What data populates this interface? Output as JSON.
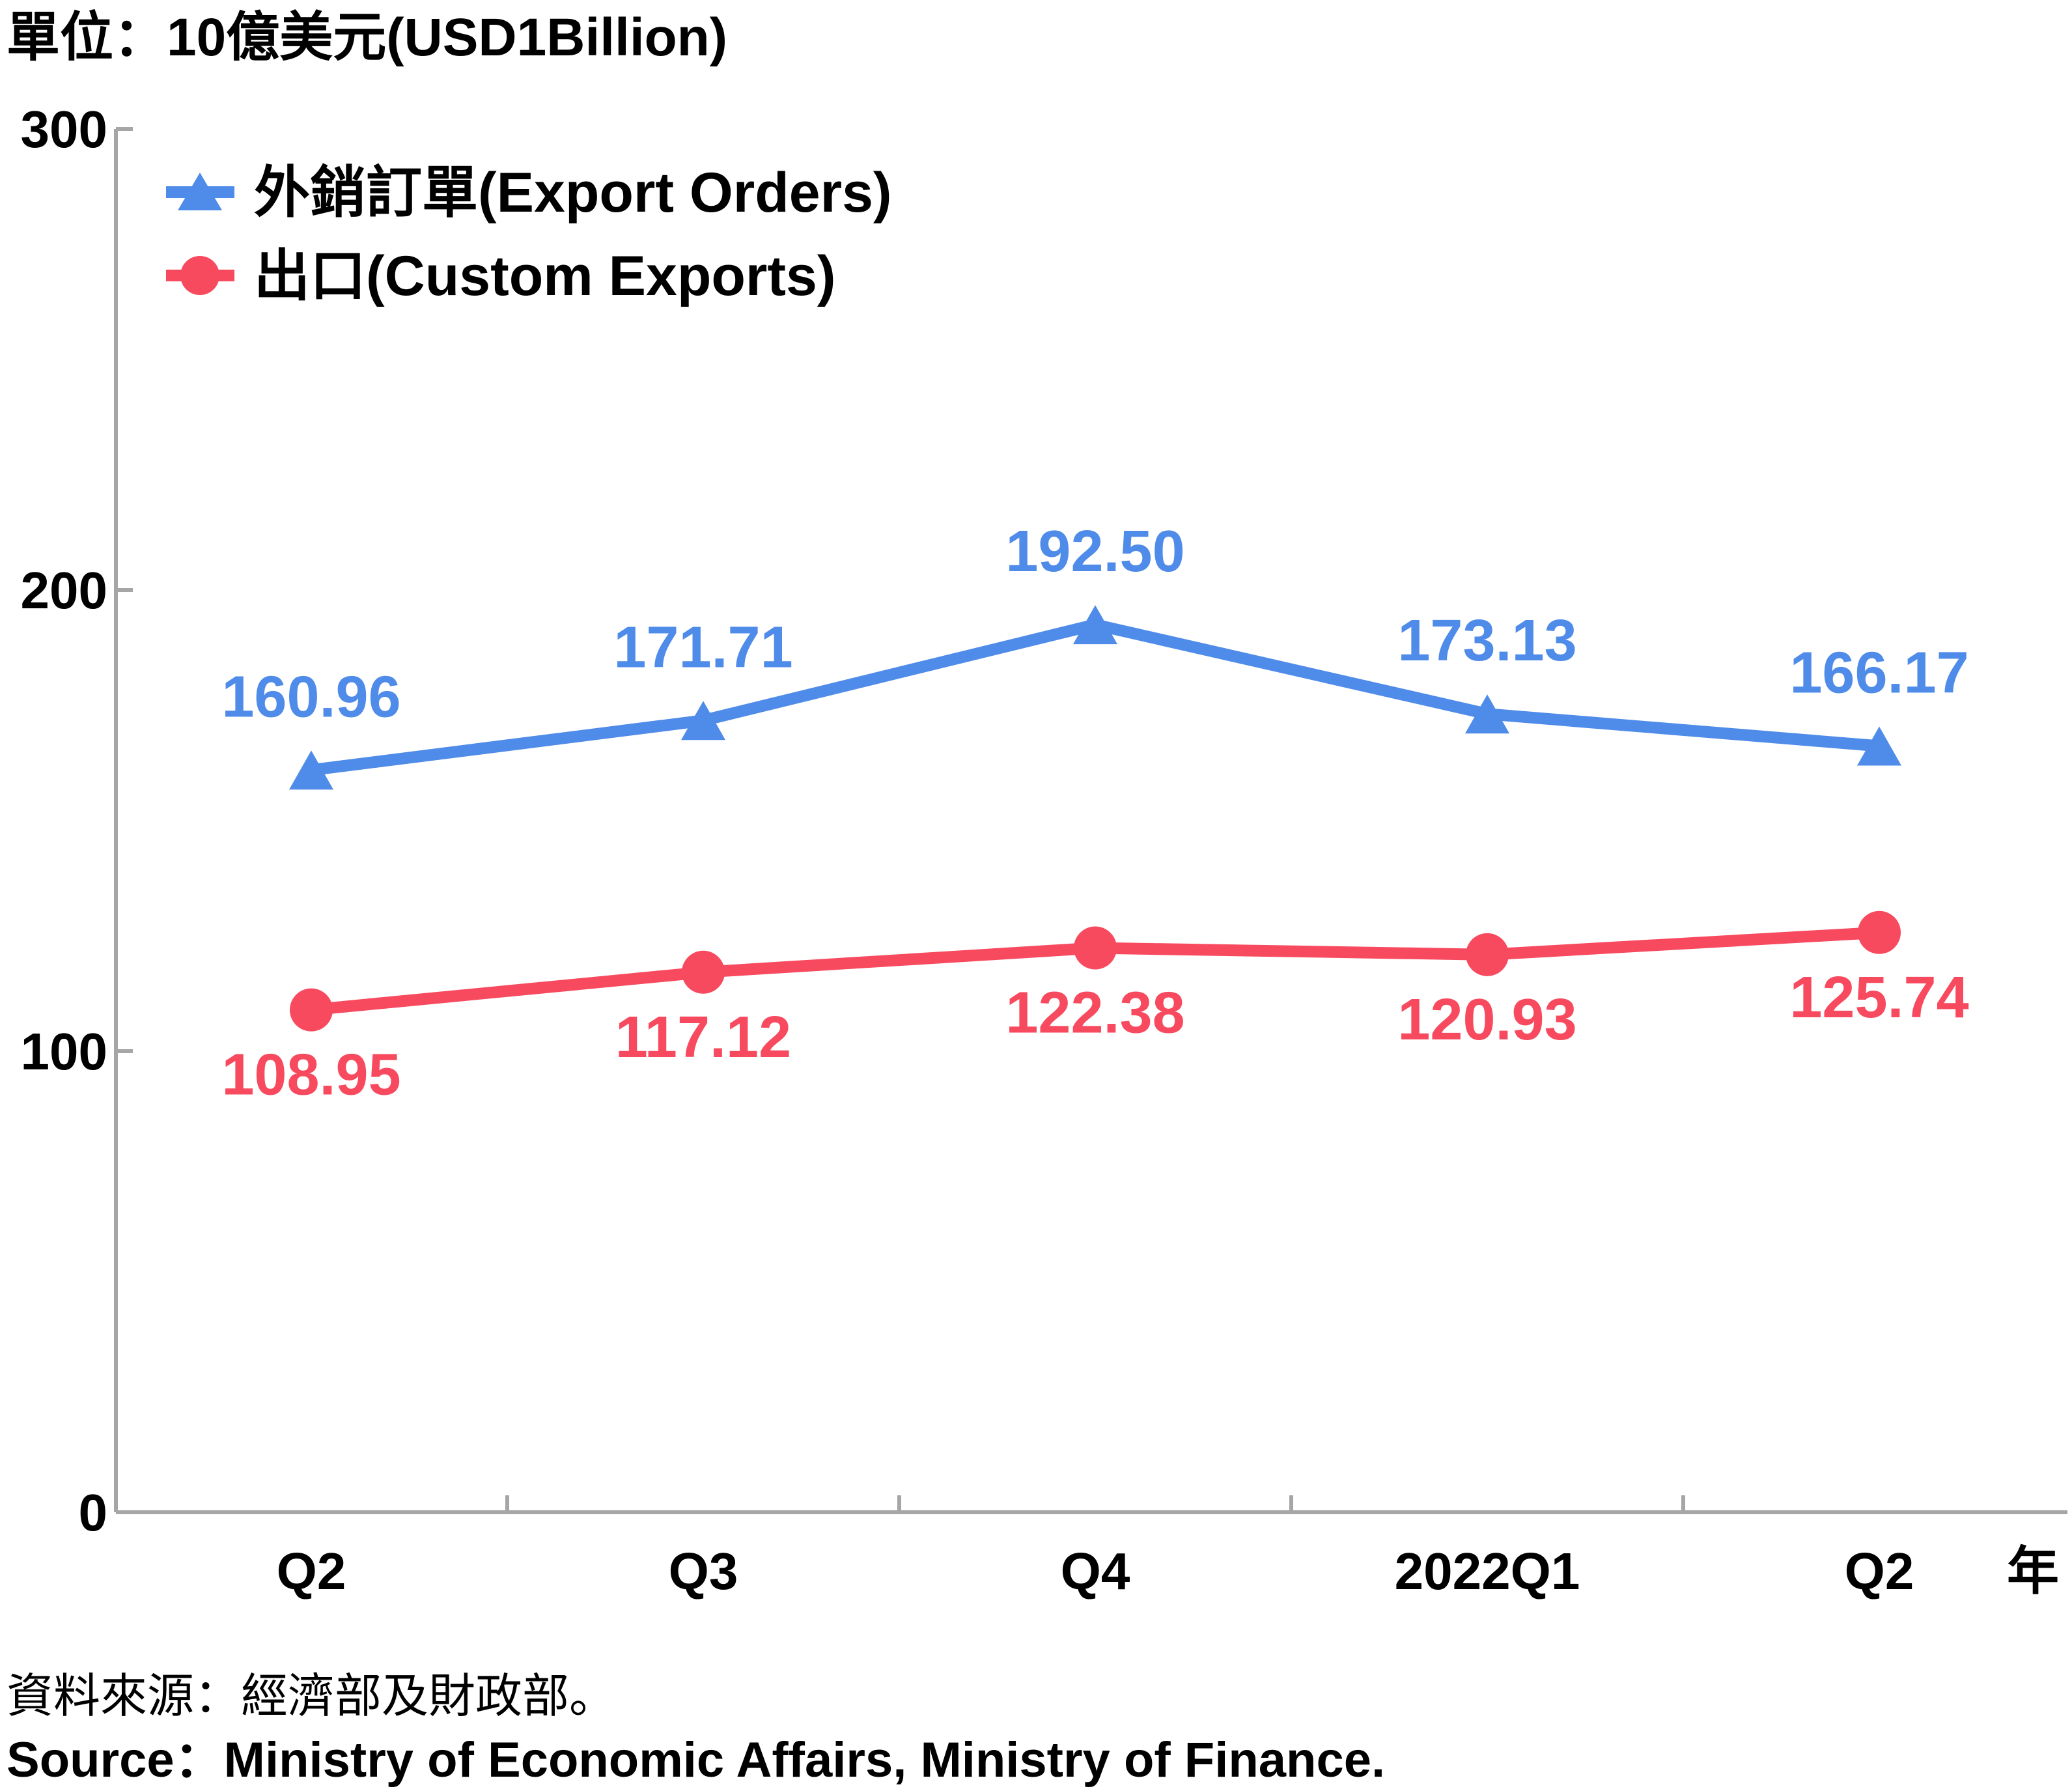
{
  "chart_data": {
    "type": "line",
    "unit_label": "單位：10億美元(USD1Billion)",
    "year_label": "年",
    "categories": [
      "Q2",
      "Q3",
      "Q4",
      "2022Q1",
      "Q2"
    ],
    "ylim": [
      0,
      300
    ],
    "yticks": [
      0,
      100,
      200,
      300
    ],
    "grid": false,
    "legend_position": "top-left",
    "series": [
      {
        "name": "外銷訂單(Export Orders)",
        "marker": "triangle",
        "color": "#4f8be8",
        "values": [
          160.96,
          171.71,
          192.5,
          173.13,
          166.17
        ],
        "labels": [
          "160.96",
          "171.71",
          "192.50",
          "173.13",
          "166.17"
        ],
        "label_position": "above"
      },
      {
        "name": "出口(Custom Exports)",
        "marker": "circle",
        "color": "#f74a5f",
        "values": [
          108.95,
          117.12,
          122.38,
          120.93,
          125.74
        ],
        "labels": [
          "108.95",
          "117.12",
          "122.38",
          "120.93",
          "125.74"
        ],
        "label_position": "below"
      }
    ]
  },
  "source": {
    "zh": "資料來源：經濟部及財政部。",
    "en": "Source：Ministry of Economic Affairs, Ministry of Finance."
  },
  "colors": {
    "axis": "#a6a6a6",
    "text": "#000000"
  }
}
